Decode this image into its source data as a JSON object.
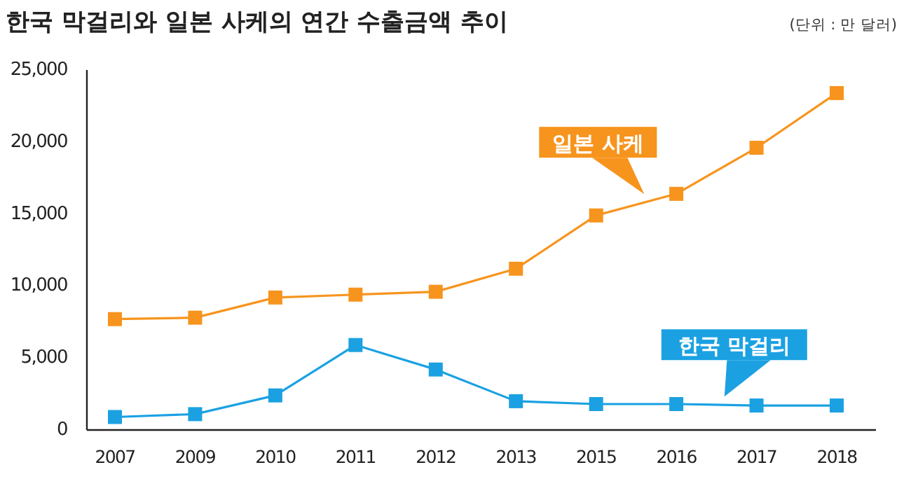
{
  "chart_data": {
    "type": "line",
    "title": "한국 막걸리와 일본 사케의 연간 수출금액 추이",
    "subtitle": "(단위 : 만 달러)",
    "categories": [
      "2007",
      "2009",
      "2010",
      "2011",
      "2012",
      "2013",
      "2015",
      "2016",
      "2017",
      "2018"
    ],
    "series": [
      {
        "name": "일본 사케",
        "color": "#f7941d",
        "values": [
          7700,
          7800,
          9200,
          9400,
          9600,
          11200,
          14900,
          16400,
          19600,
          23400
        ]
      },
      {
        "name": "한국 막걸리",
        "color": "#1ba1e2",
        "values": [
          900,
          1100,
          2400,
          5900,
          4200,
          2000,
          1800,
          1800,
          1700,
          1700
        ]
      }
    ],
    "ylim": [
      0,
      25000
    ],
    "yticks": [
      {
        "value": 0,
        "label": "0"
      },
      {
        "value": 5000,
        "label": "5,000"
      },
      {
        "value": 10000,
        "label": "10,000"
      },
      {
        "value": 15000,
        "label": "15,000"
      },
      {
        "value": 20000,
        "label": "20,000"
      },
      {
        "value": 25000,
        "label": "25,000"
      }
    ],
    "marker": "square",
    "line_style": "solid",
    "grid": false
  }
}
